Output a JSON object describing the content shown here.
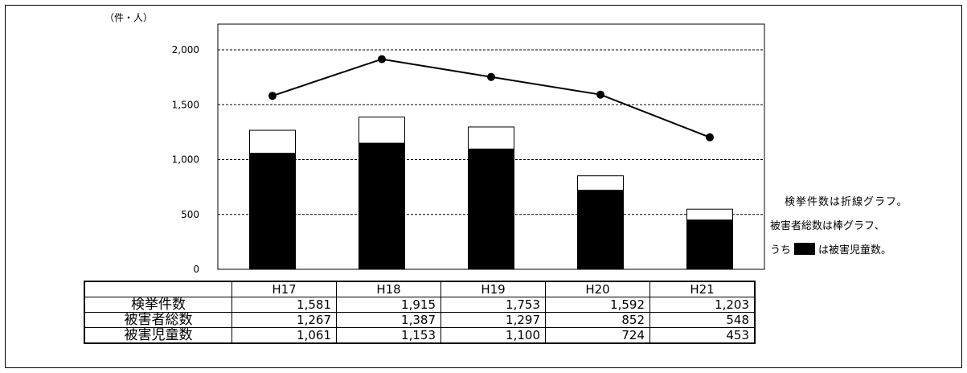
{
  "chart_data": {
    "type": "bar+line",
    "unit_label": "（件・人）",
    "categories": [
      "H17",
      "H18",
      "H19",
      "H20",
      "H21"
    ],
    "y_ticks": [
      "0",
      "500",
      "1,000",
      "1,500",
      "2,000"
    ],
    "ylim": [
      0,
      2000
    ],
    "grid": true,
    "series": [
      {
        "name": "検挙件数",
        "type": "line",
        "values": [
          1581,
          1915,
          1753,
          1592,
          1203
        ]
      },
      {
        "name": "被害者総数",
        "type": "bar",
        "values": [
          1267,
          1387,
          1297,
          852,
          548
        ]
      },
      {
        "name": "被害児童数",
        "type": "bar",
        "values": [
          1061,
          1153,
          1100,
          724,
          453
        ]
      }
    ],
    "annotations": {
      "line1": "検挙件数は折線グラフ。",
      "line2": "被害者総数は棒グラフ、",
      "line3_prefix": "うち",
      "line3_suffix": "は被害児童数。"
    },
    "table": {
      "header": [
        "H17",
        "H18",
        "H19",
        "H20",
        "H21"
      ],
      "rows": [
        {
          "label": "検挙件数",
          "cells": [
            "1,581",
            "1,915",
            "1,753",
            "1,592",
            "1,203"
          ]
        },
        {
          "label": "被害者総数",
          "cells": [
            "1,267",
            "1,387",
            "1,297",
            "852",
            "548"
          ]
        },
        {
          "label": "被害児童数",
          "cells": [
            "1,061",
            "1,153",
            "1,100",
            "724",
            "453"
          ]
        }
      ]
    }
  }
}
